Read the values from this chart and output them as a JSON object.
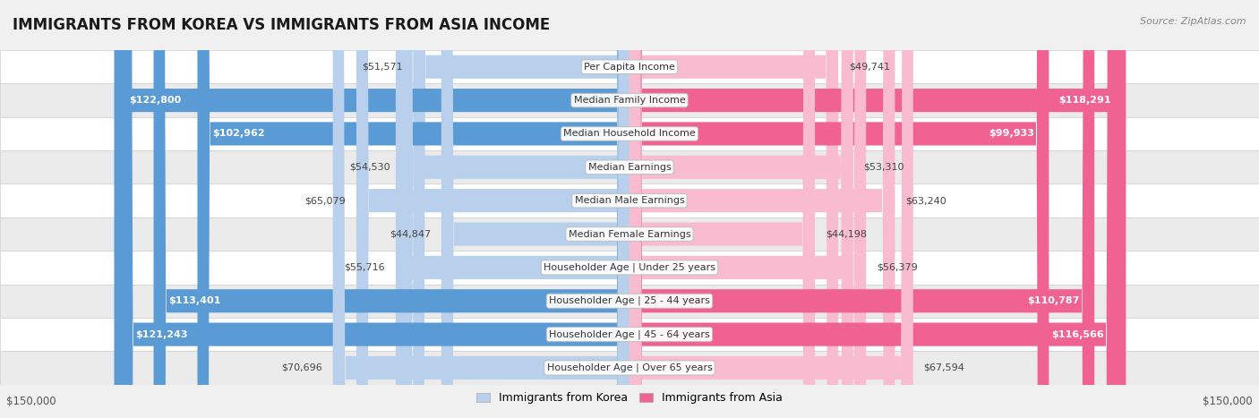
{
  "title": "IMMIGRANTS FROM KOREA VS IMMIGRANTS FROM ASIA INCOME",
  "source": "Source: ZipAtlas.com",
  "categories": [
    "Per Capita Income",
    "Median Family Income",
    "Median Household Income",
    "Median Earnings",
    "Median Male Earnings",
    "Median Female Earnings",
    "Householder Age | Under 25 years",
    "Householder Age | 25 - 44 years",
    "Householder Age | 45 - 64 years",
    "Householder Age | Over 65 years"
  ],
  "korea_values": [
    51571,
    122800,
    102962,
    54530,
    65079,
    44847,
    55716,
    113401,
    121243,
    70696
  ],
  "asia_values": [
    49741,
    118291,
    99933,
    53310,
    63240,
    44198,
    56379,
    110787,
    116566,
    67594
  ],
  "korea_labels": [
    "$51,571",
    "$122,800",
    "$102,962",
    "$54,530",
    "$65,079",
    "$44,847",
    "$55,716",
    "$113,401",
    "$121,243",
    "$70,696"
  ],
  "asia_labels": [
    "$49,741",
    "$118,291",
    "$99,933",
    "$53,310",
    "$63,240",
    "$44,198",
    "$56,379",
    "$110,787",
    "$116,566",
    "$67,594"
  ],
  "korea_color_dark": "#5b9bd5",
  "korea_color_light": "#b8d0eb",
  "asia_color_dark": "#f06292",
  "asia_color_light": "#f8bbd0",
  "max_value": 150000,
  "legend_korea": "Immigrants from Korea",
  "legend_asia": "Immigrants from Asia",
  "background_color": "#f0f0f0",
  "row_bg_color": "#ffffff",
  "row_border_color": "#d0d0d0",
  "title_fontsize": 12,
  "label_fontsize": 8,
  "category_fontsize": 8,
  "source_fontsize": 8,
  "axis_label": "$150,000",
  "korea_threshold": 85000,
  "asia_threshold": 85000
}
